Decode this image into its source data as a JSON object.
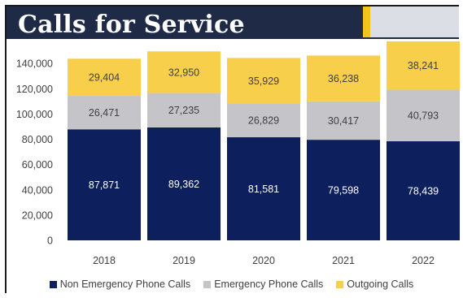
{
  "title": "Calls for Service",
  "colors": {
    "title_band": "#1e2a46",
    "title_accent": "#f4c21a",
    "title_tail": "#dcdee5"
  },
  "chart_data": {
    "type": "bar",
    "stacked": true,
    "categories": [
      "2018",
      "2019",
      "2020",
      "2021",
      "2022"
    ],
    "series": [
      {
        "name": "Non Emergency Phone Calls",
        "color": "#0d1f5c",
        "label_color": "#ffffff",
        "values": [
          87871,
          89362,
          81581,
          79598,
          78439
        ]
      },
      {
        "name": "Emergency Phone Calls",
        "color": "#c4c4c9",
        "label_color": "#404040",
        "values": [
          26471,
          27235,
          26829,
          30417,
          40793
        ]
      },
      {
        "name": "Outgoing Calls",
        "color": "#f8cf4a",
        "label_color": "#404040",
        "values": [
          29404,
          32950,
          35929,
          36238,
          38241
        ]
      }
    ],
    "data_labels": true,
    "ylim": [
      0,
      160000
    ],
    "yticks": [
      0,
      20000,
      40000,
      60000,
      80000,
      100000,
      120000,
      140000
    ],
    "ytick_labels": [
      "0",
      "20,000",
      "40,000",
      "60,000",
      "80,000",
      "100,000",
      "120,000",
      "140,000"
    ],
    "grid": false,
    "legend_position": "bottom"
  }
}
